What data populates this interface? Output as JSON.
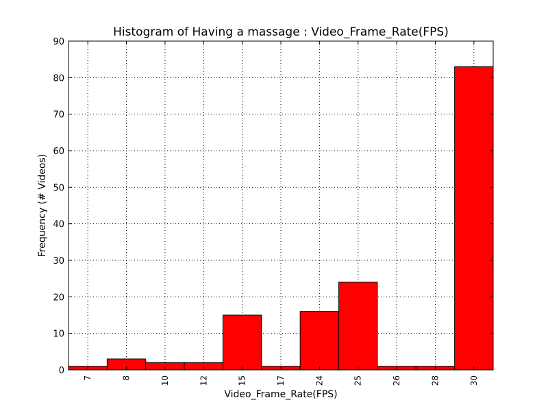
{
  "chart_data": {
    "type": "bar",
    "title": "Histogram of Having a massage : Video_Frame_Rate(FPS)",
    "xlabel": "Video_Frame_Rate(FPS)",
    "ylabel": "Frequency (# Videos)",
    "categories": [
      "7",
      "8",
      "10",
      "12",
      "15",
      "17",
      "24",
      "25",
      "26",
      "28",
      "30"
    ],
    "values": [
      1,
      3,
      2,
      2,
      15,
      1,
      16,
      24,
      1,
      1,
      83
    ],
    "ylim": [
      0,
      90
    ],
    "yticks": [
      0,
      10,
      20,
      30,
      40,
      50,
      60,
      70,
      80,
      90
    ],
    "grid": true,
    "bar_color": "#ff0000"
  }
}
